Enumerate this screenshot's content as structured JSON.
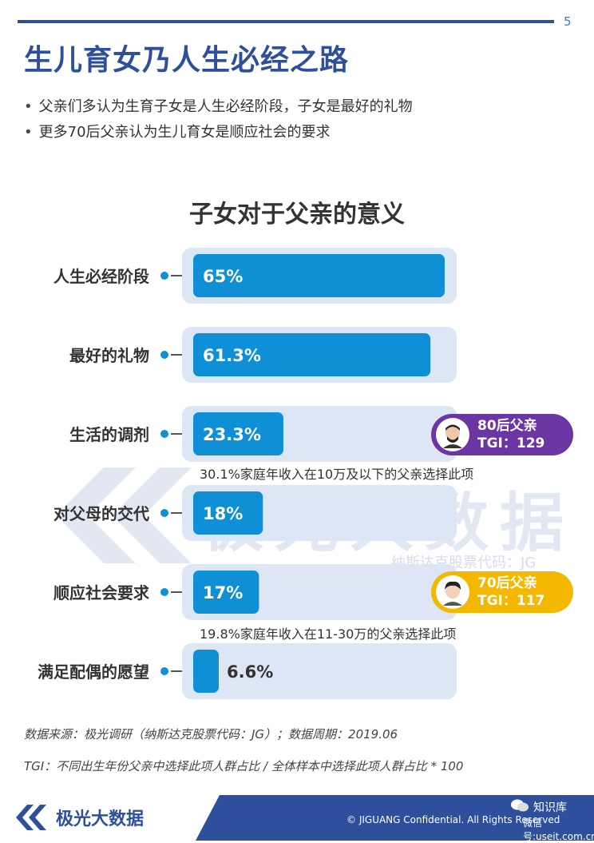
{
  "page_number": "5",
  "title": "生儿育女乃人生必经之路",
  "bullets": [
    "父亲们多认为生育子女是人生必经阶段，子女是最好的礼物",
    "更多70后父亲认为生儿育女是顺应社会的要求"
  ],
  "chart_data": {
    "type": "bar",
    "orientation": "horizontal",
    "title": "子女对于父亲的意义",
    "categories": [
      "人生必经阶段",
      "最好的礼物",
      "生活的调剂",
      "对父母的交代",
      "顺应社会要求",
      "满足配偶的愿望"
    ],
    "values": [
      65,
      61.3,
      23.3,
      18,
      17,
      6.6
    ],
    "value_labels": [
      "65%",
      "61.3%",
      "23.3%",
      "18%",
      "17%",
      "6.6%"
    ],
    "xlim": [
      0,
      65
    ],
    "bar_color": "#0e8fd6",
    "track_color": "#dde6f4"
  },
  "badges": [
    {
      "line1": "80后父亲",
      "line2": "TGI：129",
      "color": "#6b35a4",
      "icon": "man-avatar-icon"
    },
    {
      "line1": "70后父亲",
      "line2": "TGI：117",
      "color": "#f4b800",
      "icon": "man-avatar-icon"
    }
  ],
  "notes": [
    "30.1%家庭年收入在10万及以下的父亲选择此项",
    "19.8%家庭年收入在11-30万的父亲选择此项"
  ],
  "watermark": {
    "text": "极光大数据",
    "sub": "纳斯达克股票代码：JG"
  },
  "source_line": "数据来源：极光调研（纳斯达克股票代码：JG）；数据周期：2019.06",
  "tgi_line": "TGI：不同出生年份父亲中选择此项人群占比 / 全体样本中选择此项人群占比 * 100",
  "footer": {
    "logo_text": "极光大数据",
    "copyright": "© JIGUANG Confidential. All Rights Reserved",
    "wechat_label": "知识库",
    "wechat_sub": "微信号:useit.com.cn"
  }
}
